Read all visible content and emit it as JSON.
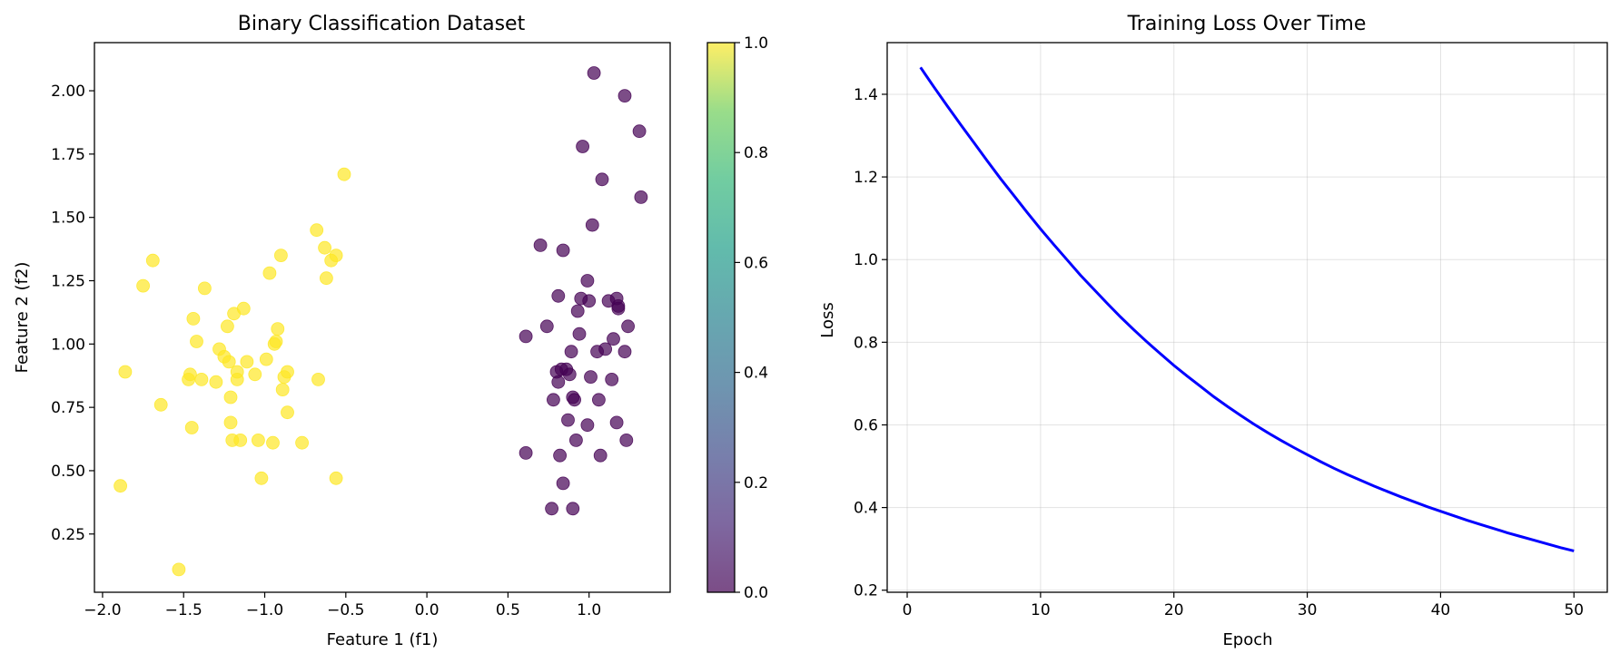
{
  "chart_data": [
    {
      "type": "scatter",
      "title": "Binary Classification Dataset",
      "xlabel": "Feature 1 (f1)",
      "ylabel": "Feature 2 (f2)",
      "xlim": [
        -2.05,
        1.5
      ],
      "ylim": [
        0.02,
        2.19
      ],
      "xticks": [
        -2.0,
        -1.5,
        -1.0,
        -0.5,
        0.0,
        0.5,
        1.0
      ],
      "xtick_labels": [
        "−2.0",
        "−1.5",
        "−1.0",
        "−0.5",
        "0.0",
        "0.5",
        "1.0"
      ],
      "yticks": [
        0.25,
        0.5,
        0.75,
        1.0,
        1.25,
        1.5,
        1.75,
        2.0
      ],
      "ytick_labels": [
        "0.25",
        "0.50",
        "0.75",
        "1.00",
        "1.25",
        "1.50",
        "1.75",
        "2.00"
      ],
      "grid": false,
      "colormap": "viridis",
      "alpha": 0.7,
      "colorbar": {
        "range": [
          0.0,
          1.0
        ],
        "ticks": [
          0.0,
          0.2,
          0.4,
          0.6,
          0.8,
          1.0
        ],
        "tick_labels": [
          "0.0",
          "0.2",
          "0.4",
          "0.6",
          "0.8",
          "1.0"
        ]
      },
      "series": [
        {
          "class_value": 1.0,
          "color": "#fde725",
          "points": [
            [
              -1.89,
              0.44
            ],
            [
              -1.86,
              0.89
            ],
            [
              -1.75,
              1.23
            ],
            [
              -1.69,
              1.33
            ],
            [
              -1.64,
              0.76
            ],
            [
              -1.53,
              0.11
            ],
            [
              -1.47,
              0.86
            ],
            [
              -1.46,
              0.88
            ],
            [
              -1.45,
              0.67
            ],
            [
              -1.44,
              1.1
            ],
            [
              -1.42,
              1.01
            ],
            [
              -1.39,
              0.86
            ],
            [
              -1.37,
              1.22
            ],
            [
              -1.3,
              0.85
            ],
            [
              -1.28,
              0.98
            ],
            [
              -1.25,
              0.95
            ],
            [
              -1.23,
              1.07
            ],
            [
              -1.22,
              0.93
            ],
            [
              -1.21,
              0.79
            ],
            [
              -1.21,
              0.69
            ],
            [
              -1.2,
              0.62
            ],
            [
              -1.19,
              1.12
            ],
            [
              -1.17,
              0.89
            ],
            [
              -1.17,
              0.86
            ],
            [
              -1.15,
              0.62
            ],
            [
              -1.13,
              1.14
            ],
            [
              -1.11,
              0.93
            ],
            [
              -1.06,
              0.88
            ],
            [
              -1.04,
              0.62
            ],
            [
              -1.02,
              0.47
            ],
            [
              -0.99,
              0.94
            ],
            [
              -0.97,
              1.28
            ],
            [
              -0.95,
              0.61
            ],
            [
              -0.94,
              1.0
            ],
            [
              -0.93,
              1.01
            ],
            [
              -0.92,
              1.06
            ],
            [
              -0.9,
              1.35
            ],
            [
              -0.89,
              0.82
            ],
            [
              -0.88,
              0.87
            ],
            [
              -0.86,
              0.89
            ],
            [
              -0.86,
              0.73
            ],
            [
              -0.77,
              0.61
            ],
            [
              -0.68,
              1.45
            ],
            [
              -0.67,
              0.86
            ],
            [
              -0.63,
              1.38
            ],
            [
              -0.62,
              1.26
            ],
            [
              -0.59,
              1.33
            ],
            [
              -0.56,
              1.35
            ],
            [
              -0.56,
              0.47
            ],
            [
              -0.51,
              1.67
            ]
          ]
        },
        {
          "class_value": 0.0,
          "color": "#440154",
          "points": [
            [
              0.61,
              1.03
            ],
            [
              0.61,
              0.57
            ],
            [
              0.7,
              1.39
            ],
            [
              0.74,
              1.07
            ],
            [
              0.77,
              0.35
            ],
            [
              0.78,
              0.78
            ],
            [
              0.8,
              0.89
            ],
            [
              0.81,
              1.19
            ],
            [
              0.81,
              0.85
            ],
            [
              0.82,
              0.56
            ],
            [
              0.83,
              0.9
            ],
            [
              0.84,
              1.37
            ],
            [
              0.84,
              0.45
            ],
            [
              0.86,
              0.9
            ],
            [
              0.87,
              0.7
            ],
            [
              0.88,
              0.88
            ],
            [
              0.89,
              0.97
            ],
            [
              0.9,
              0.79
            ],
            [
              0.9,
              0.35
            ],
            [
              0.91,
              0.78
            ],
            [
              0.92,
              0.62
            ],
            [
              0.93,
              1.13
            ],
            [
              0.94,
              1.04
            ],
            [
              0.95,
              1.18
            ],
            [
              0.96,
              1.78
            ],
            [
              0.99,
              1.25
            ],
            [
              0.99,
              0.68
            ],
            [
              1.0,
              1.17
            ],
            [
              1.01,
              0.87
            ],
            [
              1.02,
              1.47
            ],
            [
              1.03,
              2.07
            ],
            [
              1.05,
              0.97
            ],
            [
              1.06,
              0.78
            ],
            [
              1.07,
              0.56
            ],
            [
              1.08,
              1.65
            ],
            [
              1.1,
              0.98
            ],
            [
              1.12,
              1.17
            ],
            [
              1.14,
              0.86
            ],
            [
              1.15,
              1.02
            ],
            [
              1.17,
              1.18
            ],
            [
              1.17,
              0.69
            ],
            [
              1.18,
              1.14
            ],
            [
              1.18,
              1.15
            ],
            [
              1.22,
              0.97
            ],
            [
              1.22,
              1.98
            ],
            [
              1.23,
              0.62
            ],
            [
              1.24,
              1.07
            ],
            [
              1.31,
              1.84
            ],
            [
              1.32,
              1.58
            ]
          ]
        }
      ]
    },
    {
      "type": "line",
      "title": "Training Loss Over Time",
      "xlabel": "Epoch",
      "ylabel": "Loss",
      "xlim": [
        -1.5,
        52.5
      ],
      "ylim": [
        0.195,
        1.525
      ],
      "xticks": [
        0,
        10,
        20,
        30,
        40,
        50
      ],
      "xtick_labels": [
        "0",
        "10",
        "20",
        "30",
        "40",
        "50"
      ],
      "yticks": [
        0.2,
        0.4,
        0.6,
        0.8,
        1.0,
        1.2,
        1.4
      ],
      "ytick_labels": [
        "0.2",
        "0.4",
        "0.6",
        "0.8",
        "1.0",
        "1.2",
        "1.4"
      ],
      "grid": true,
      "series": [
        {
          "color": "#0000ff",
          "x": [
            1,
            2,
            3,
            4,
            5,
            6,
            7,
            8,
            9,
            10,
            11,
            12,
            13,
            14,
            15,
            16,
            17,
            18,
            19,
            20,
            21,
            22,
            23,
            24,
            25,
            26,
            27,
            28,
            29,
            30,
            31,
            32,
            33,
            34,
            35,
            36,
            37,
            38,
            39,
            40,
            41,
            42,
            43,
            44,
            45,
            46,
            47,
            48,
            49,
            50
          ],
          "values": [
            1.465,
            1.418,
            1.372,
            1.327,
            1.283,
            1.239,
            1.196,
            1.155,
            1.114,
            1.074,
            1.036,
            0.999,
            0.962,
            0.928,
            0.894,
            0.861,
            0.83,
            0.8,
            0.772,
            0.744,
            0.718,
            0.693,
            0.668,
            0.645,
            0.623,
            0.602,
            0.582,
            0.563,
            0.545,
            0.528,
            0.511,
            0.495,
            0.48,
            0.466,
            0.452,
            0.439,
            0.426,
            0.414,
            0.402,
            0.391,
            0.38,
            0.369,
            0.359,
            0.349,
            0.339,
            0.33,
            0.321,
            0.312,
            0.303,
            0.295
          ]
        }
      ]
    }
  ]
}
